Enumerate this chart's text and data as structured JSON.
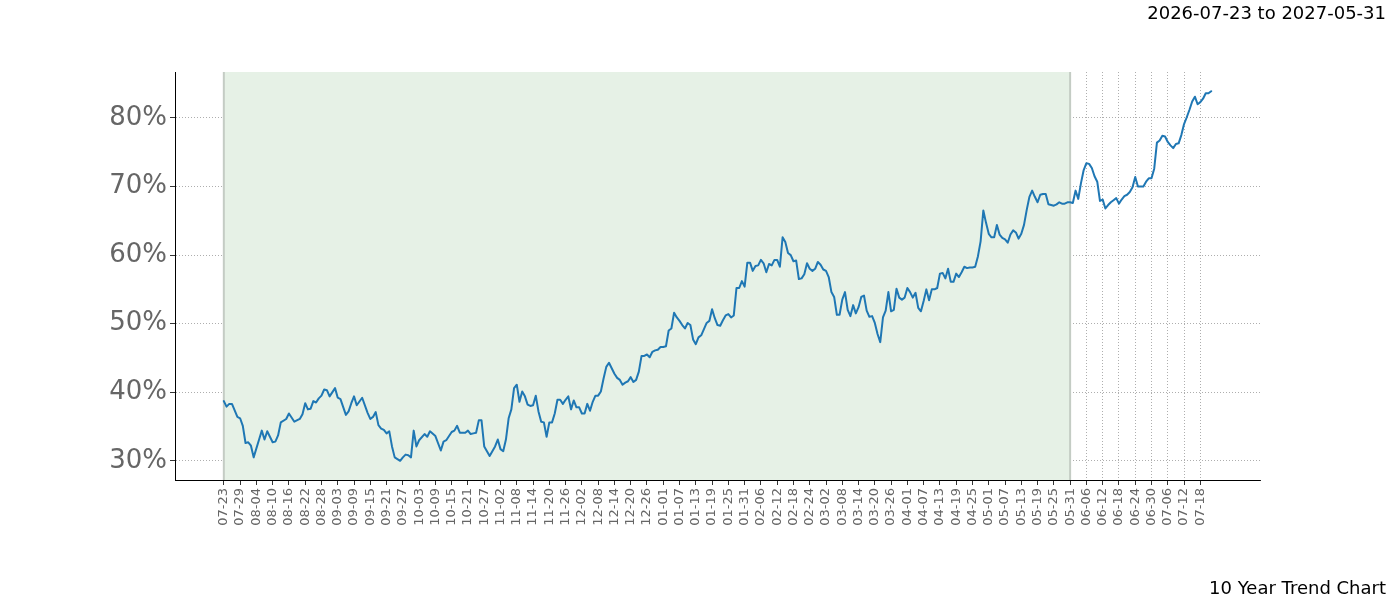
{
  "chart_data": {
    "type": "line",
    "title": "2026-07-23 to 2027-05-31",
    "annotations": [
      "10 Year Trend Chart"
    ],
    "color": "#1f77b4",
    "grid": true,
    "marker": "none",
    "line_style": "solid",
    "xlim": [
      "2026-07-05",
      "2027-08-09"
    ],
    "ylim": [
      27.2,
      86.7
    ],
    "yticks": [
      {
        "value": 30,
        "label": "30%"
      },
      {
        "value": 40,
        "label": "40%"
      },
      {
        "value": 50,
        "label": "50%"
      },
      {
        "value": 60,
        "label": "60%"
      },
      {
        "value": 70,
        "label": "70%"
      },
      {
        "value": 80,
        "label": "80%"
      }
    ],
    "xticks": [
      {
        "value": "2026-07-23",
        "label": "07-23"
      },
      {
        "value": "2026-07-29",
        "label": "07-29"
      },
      {
        "value": "2026-08-04",
        "label": "08-04"
      },
      {
        "value": "2026-08-10",
        "label": "08-10"
      },
      {
        "value": "2026-08-16",
        "label": "08-16"
      },
      {
        "value": "2026-08-22",
        "label": "08-22"
      },
      {
        "value": "2026-08-28",
        "label": "08-28"
      },
      {
        "value": "2026-09-03",
        "label": "09-03"
      },
      {
        "value": "2026-09-09",
        "label": "09-09"
      },
      {
        "value": "2026-09-15",
        "label": "09-15"
      },
      {
        "value": "2026-09-21",
        "label": "09-21"
      },
      {
        "value": "2026-09-27",
        "label": "09-27"
      },
      {
        "value": "2026-10-03",
        "label": "10-03"
      },
      {
        "value": "2026-10-09",
        "label": "10-09"
      },
      {
        "value": "2026-10-15",
        "label": "10-15"
      },
      {
        "value": "2026-10-21",
        "label": "10-21"
      },
      {
        "value": "2026-10-27",
        "label": "10-27"
      },
      {
        "value": "2026-11-02",
        "label": "11-02"
      },
      {
        "value": "2026-11-08",
        "label": "11-08"
      },
      {
        "value": "2026-11-14",
        "label": "11-14"
      },
      {
        "value": "2026-11-20",
        "label": "11-20"
      },
      {
        "value": "2026-11-26",
        "label": "11-26"
      },
      {
        "value": "2026-12-02",
        "label": "12-02"
      },
      {
        "value": "2026-12-08",
        "label": "12-08"
      },
      {
        "value": "2026-12-14",
        "label": "12-14"
      },
      {
        "value": "2026-12-20",
        "label": "12-20"
      },
      {
        "value": "2026-12-26",
        "label": "12-26"
      },
      {
        "value": "2027-01-01",
        "label": "01-01"
      },
      {
        "value": "2027-01-07",
        "label": "01-07"
      },
      {
        "value": "2027-01-13",
        "label": "01-13"
      },
      {
        "value": "2027-01-19",
        "label": "01-19"
      },
      {
        "value": "2027-01-25",
        "label": "01-25"
      },
      {
        "value": "2027-01-31",
        "label": "01-31"
      },
      {
        "value": "2027-02-06",
        "label": "02-06"
      },
      {
        "value": "2027-02-12",
        "label": "02-12"
      },
      {
        "value": "2027-02-18",
        "label": "02-18"
      },
      {
        "value": "2027-02-24",
        "label": "02-24"
      },
      {
        "value": "2027-03-02",
        "label": "03-02"
      },
      {
        "value": "2027-03-08",
        "label": "03-08"
      },
      {
        "value": "2027-03-14",
        "label": "03-14"
      },
      {
        "value": "2027-03-20",
        "label": "03-20"
      },
      {
        "value": "2027-03-26",
        "label": "03-26"
      },
      {
        "value": "2027-04-01",
        "label": "04-01"
      },
      {
        "value": "2027-04-07",
        "label": "04-07"
      },
      {
        "value": "2027-04-13",
        "label": "04-13"
      },
      {
        "value": "2027-04-19",
        "label": "04-19"
      },
      {
        "value": "2027-04-25",
        "label": "04-25"
      },
      {
        "value": "2027-05-01",
        "label": "05-01"
      },
      {
        "value": "2027-05-07",
        "label": "05-07"
      },
      {
        "value": "2027-05-13",
        "label": "05-13"
      },
      {
        "value": "2027-05-19",
        "label": "05-19"
      },
      {
        "value": "2027-05-25",
        "label": "05-25"
      },
      {
        "value": "2027-05-31",
        "label": "05-31"
      },
      {
        "value": "2027-06-06",
        "label": "06-06"
      },
      {
        "value": "2027-06-12",
        "label": "06-12"
      },
      {
        "value": "2027-06-18",
        "label": "06-18"
      },
      {
        "value": "2027-06-24",
        "label": "06-24"
      },
      {
        "value": "2027-06-30",
        "label": "06-30"
      },
      {
        "value": "2027-07-06",
        "label": "07-06"
      },
      {
        "value": "2027-07-12",
        "label": "07-12"
      },
      {
        "value": "2027-07-18",
        "label": "07-18"
      }
    ],
    "bands": [
      {
        "axis": "x",
        "from": "2026-07-23",
        "to": "2027-05-31",
        "color": "#e6f1e6"
      }
    ],
    "x": [
      "2026-07-23",
      "2026-07-24",
      "2026-07-25",
      "2026-07-26",
      "2026-07-28",
      "2026-07-29",
      "2026-07-30",
      "2026-07-31",
      "2026-08-01",
      "2026-08-02",
      "2026-08-03",
      "2026-08-05",
      "2026-08-06",
      "2026-08-07",
      "2026-08-08",
      "2026-08-09",
      "2026-08-10",
      "2026-08-11",
      "2026-08-12",
      "2026-08-13",
      "2026-08-15",
      "2026-08-16",
      "2026-08-18",
      "2026-08-20",
      "2026-08-21",
      "2026-08-22",
      "2026-08-23",
      "2026-08-24",
      "2026-08-25",
      "2026-08-26",
      "2026-08-27",
      "2026-08-28",
      "2026-08-29",
      "2026-08-30",
      "2026-08-31",
      "2026-09-02",
      "2026-09-03",
      "2026-09-04",
      "2026-09-06",
      "2026-09-07",
      "2026-09-08",
      "2026-09-09",
      "2026-09-10",
      "2026-09-12",
      "2026-09-14",
      "2026-09-15",
      "2026-09-16",
      "2026-09-17",
      "2026-09-18",
      "2026-09-19",
      "2026-09-20",
      "2026-09-21",
      "2026-09-22",
      "2026-09-23",
      "2026-09-24",
      "2026-09-26",
      "2026-09-27",
      "2026-09-28",
      "2026-09-29",
      "2026-09-30",
      "2026-10-01",
      "2026-10-02",
      "2026-10-03",
      "2026-10-05",
      "2026-10-06",
      "2026-10-07",
      "2026-10-09",
      "2026-10-11",
      "2026-10-12",
      "2026-10-13",
      "2026-10-15",
      "2026-10-16",
      "2026-10-17",
      "2026-10-18",
      "2026-10-20",
      "2026-10-21",
      "2026-10-22",
      "2026-10-23",
      "2026-10-24",
      "2026-10-25",
      "2026-10-26",
      "2026-10-27",
      "2026-10-28",
      "2026-10-29",
      "2026-10-31",
      "2026-11-01",
      "2026-11-02",
      "2026-11-03",
      "2026-11-04",
      "2026-11-05",
      "2026-11-06",
      "2026-11-07",
      "2026-11-08",
      "2026-11-09",
      "2026-11-10",
      "2026-11-11",
      "2026-11-12",
      "2026-11-13",
      "2026-11-14",
      "2026-11-15",
      "2026-11-16",
      "2026-11-17",
      "2026-11-18",
      "2026-11-19",
      "2026-11-20",
      "2026-11-21",
      "2026-11-22",
      "2026-11-23",
      "2026-11-24",
      "2026-11-25",
      "2026-11-26",
      "2026-11-27",
      "2026-11-28",
      "2026-11-29",
      "2026-11-30",
      "2026-12-01",
      "2026-12-02",
      "2026-12-03",
      "2026-12-04",
      "2026-12-05",
      "2026-12-06",
      "2026-12-07",
      "2026-12-08",
      "2026-12-09",
      "2026-12-10",
      "2026-12-11",
      "2026-12-12",
      "2026-12-13",
      "2026-12-14",
      "2026-12-15",
      "2026-12-16",
      "2026-12-17",
      "2026-12-18",
      "2026-12-19",
      "2026-12-20",
      "2026-12-21",
      "2026-12-22",
      "2026-12-23",
      "2026-12-24",
      "2026-12-25",
      "2026-12-26",
      "2026-12-27",
      "2026-12-28",
      "2026-12-29",
      "2026-12-30",
      "2026-12-31",
      "2027-01-01",
      "2027-01-02",
      "2027-01-03",
      "2027-01-04",
      "2027-01-05",
      "2027-01-06",
      "2027-01-07",
      "2027-01-08",
      "2027-01-09",
      "2027-01-10",
      "2027-01-11",
      "2027-01-12",
      "2027-01-13",
      "2027-01-14",
      "2027-01-15",
      "2027-01-16",
      "2027-01-17",
      "2027-01-18",
      "2027-01-19",
      "2027-01-20",
      "2027-01-21",
      "2027-01-22",
      "2027-01-23",
      "2027-01-24",
      "2027-01-25",
      "2027-01-26",
      "2027-01-27",
      "2027-01-28",
      "2027-01-29",
      "2027-01-30",
      "2027-01-31",
      "2027-02-01",
      "2027-02-02",
      "2027-02-03",
      "2027-02-04",
      "2027-02-05",
      "2027-02-06",
      "2027-02-07",
      "2027-02-08",
      "2027-02-09",
      "2027-02-10",
      "2027-02-11",
      "2027-02-12",
      "2027-02-13",
      "2027-02-14",
      "2027-02-15",
      "2027-02-16",
      "2027-02-17",
      "2027-02-18",
      "2027-02-19",
      "2027-02-20",
      "2027-02-21",
      "2027-02-22",
      "2027-02-23",
      "2027-02-24",
      "2027-02-25",
      "2027-02-26",
      "2027-02-27",
      "2027-02-28",
      "2027-03-01",
      "2027-03-02",
      "2027-03-03",
      "2027-03-04",
      "2027-03-05",
      "2027-03-06",
      "2027-03-07",
      "2027-03-08",
      "2027-03-09",
      "2027-03-10",
      "2027-03-11",
      "2027-03-12",
      "2027-03-13",
      "2027-03-14",
      "2027-03-15",
      "2027-03-16",
      "2027-03-17",
      "2027-03-18",
      "2027-03-19",
      "2027-03-20",
      "2027-03-21",
      "2027-03-22",
      "2027-03-23",
      "2027-03-24",
      "2027-03-25",
      "2027-03-26",
      "2027-03-27",
      "2027-03-28",
      "2027-03-29",
      "2027-03-30",
      "2027-03-31",
      "2027-04-01",
      "2027-04-02",
      "2027-04-03",
      "2027-04-04",
      "2027-04-05",
      "2027-04-06",
      "2027-04-07",
      "2027-04-08",
      "2027-04-09",
      "2027-04-10",
      "2027-04-11",
      "2027-04-12",
      "2027-04-13",
      "2027-04-14",
      "2027-04-15",
      "2027-04-16",
      "2027-04-17",
      "2027-04-18",
      "2027-04-19",
      "2027-04-20",
      "2027-04-21",
      "2027-04-22",
      "2027-04-23",
      "2027-04-24",
      "2027-04-25",
      "2027-04-26",
      "2027-04-27",
      "2027-04-28",
      "2027-04-29",
      "2027-04-30",
      "2027-05-01",
      "2027-05-02",
      "2027-05-03",
      "2027-05-04",
      "2027-05-05",
      "2027-05-06",
      "2027-05-07",
      "2027-05-08",
      "2027-05-09",
      "2027-05-10",
      "2027-05-11",
      "2027-05-12",
      "2027-05-13",
      "2027-05-14",
      "2027-05-15",
      "2027-05-16",
      "2027-05-17",
      "2027-05-18",
      "2027-05-19",
      "2027-05-20",
      "2027-05-21",
      "2027-05-22",
      "2027-05-23",
      "2027-05-24",
      "2027-05-25",
      "2027-05-26",
      "2027-05-27",
      "2027-05-28",
      "2027-05-29",
      "2027-05-30",
      "2027-05-31",
      "2027-06-01",
      "2027-06-02",
      "2027-06-03",
      "2027-06-04",
      "2027-06-05",
      "2027-06-06",
      "2027-06-07",
      "2027-06-08",
      "2027-06-09",
      "2027-06-10",
      "2027-06-11",
      "2027-06-12",
      "2027-06-13",
      "2027-06-14",
      "2027-06-15",
      "2027-06-16",
      "2027-06-17",
      "2027-06-18",
      "2027-06-19",
      "2027-06-20",
      "2027-06-21",
      "2027-06-22",
      "2027-06-23",
      "2027-06-24",
      "2027-06-25",
      "2027-06-26",
      "2027-06-27",
      "2027-06-28",
      "2027-06-29",
      "2027-06-30",
      "2027-07-01",
      "2027-07-02",
      "2027-07-03",
      "2027-07-04",
      "2027-07-05",
      "2027-07-06",
      "2027-07-07",
      "2027-07-08",
      "2027-07-09",
      "2027-07-10",
      "2027-07-11",
      "2027-07-12",
      "2027-07-13",
      "2027-07-14",
      "2027-07-15",
      "2027-07-16",
      "2027-07-17",
      "2027-07-18",
      "2027-07-19",
      "2027-07-20",
      "2027-07-21",
      "2027-07-22"
    ],
    "values": [
      38.7,
      37.9,
      38.3,
      38.3,
      36.4,
      36.2,
      35.1,
      32.6,
      32.7,
      32.2,
      30.5,
      33.1,
      34.4,
      33.1,
      34.3,
      33.5,
      32.7,
      32.8,
      33.7,
      35.6,
      36.1,
      36.9,
      35.7,
      36.1,
      36.8,
      38.4,
      37.5,
      37.6,
      38.7,
      38.5,
      39.1,
      39.5,
      40.4,
      40.3,
      39.4,
      40.6,
      39.2,
      39.0,
      36.7,
      37.2,
      38.4,
      39.4,
      38.1,
      39.2,
      37.0,
      36.1,
      36.4,
      37.1,
      35.2,
      34.7,
      34.5,
      34.0,
      34.3,
      32.1,
      30.5,
      30.0,
      30.5,
      30.9,
      30.8,
      30.5,
      34.4,
      32.1,
      33.0,
      33.9,
      33.5,
      34.3,
      33.6,
      31.5,
      32.8,
      33.0,
      34.2,
      34.4,
      35.1,
      34.1,
      34.1,
      34.4,
      33.9,
      34.0,
      34.1,
      35.9,
      35.9,
      32.1,
      31.4,
      30.7,
      32.1,
      33.1,
      31.7,
      31.4,
      33.1,
      36.2,
      37.5,
      40.6,
      41.1,
      38.6,
      40.1,
      39.4,
      38.2,
      38.0,
      38.1,
      39.5,
      37.2,
      35.7,
      35.6,
      33.5,
      35.6,
      35.6,
      36.9,
      38.9,
      38.9,
      38.3,
      38.9,
      39.4,
      37.5,
      38.8,
      37.8,
      37.8,
      36.9,
      36.9,
      38.3,
      37.3,
      38.6,
      39.5,
      39.5,
      40.1,
      42.0,
      43.7,
      44.3,
      43.5,
      42.7,
      42.1,
      41.8,
      41.1,
      41.4,
      41.6,
      42.2,
      41.5,
      41.8,
      43.0,
      45.3,
      45.3,
      45.5,
      45.1,
      45.9,
      46.1,
      46.2,
      46.6,
      46.6,
      46.7,
      49.0,
      49.3,
      51.6,
      50.9,
      50.4,
      49.8,
      49.3,
      50.1,
      49.8,
      47.7,
      47.0,
      48.0,
      48.3,
      49.2,
      50.1,
      50.4,
      52.1,
      50.8,
      49.8,
      49.7,
      50.5,
      51.2,
      51.4,
      50.9,
      51.2,
      55.2,
      55.2,
      56.2,
      55.4,
      58.9,
      58.9,
      57.7,
      58.4,
      58.5,
      59.3,
      58.8,
      57.5,
      58.7,
      58.5,
      59.3,
      59.3,
      58.3,
      62.6,
      61.9,
      60.3,
      60.0,
      59.1,
      59.2,
      56.5,
      56.6,
      57.2,
      58.8,
      58.0,
      57.7,
      58.0,
      59.0,
      58.6,
      57.9,
      57.7,
      56.8,
      54.6,
      53.9,
      51.3,
      51.3,
      53.5,
      54.6,
      52.0,
      51.1,
      52.7,
      51.5,
      52.4,
      53.9,
      54.1,
      51.9,
      51.0,
      51.1,
      50.1,
      48.5,
      47.3,
      50.9,
      51.9,
      54.6,
      51.8,
      52.0,
      55.1,
      53.8,
      53.5,
      53.8,
      55.2,
      54.6,
      53.8,
      54.5,
      52.3,
      51.8,
      53.3,
      55.0,
      53.4,
      55.0,
      55.0,
      55.2,
      57.3,
      57.4,
      56.6,
      58.0,
      56.1,
      56.1,
      57.3,
      56.8,
      57.5,
      58.3,
      58.1,
      58.2,
      58.2,
      58.3,
      59.8,
      62.0,
      66.5,
      64.7,
      63.1,
      62.6,
      62.6,
      64.4,
      63.0,
      62.5,
      62.3,
      61.8,
      63.0,
      63.6,
      63.3,
      62.4,
      63.1,
      64.4,
      66.6,
      68.5,
      69.4,
      68.5,
      67.7,
      68.8,
      68.9,
      68.9,
      67.4,
      67.3,
      67.2,
      67.4,
      67.7,
      67.5,
      67.5,
      67.7,
      67.7,
      67.6,
      69.4,
      68.2,
      70.5,
      72.4,
      73.4,
      73.3,
      72.7,
      71.5,
      70.7,
      67.9,
      68.1,
      66.8,
      67.3,
      67.7,
      68.0,
      68.3,
      67.5,
      68.1,
      68.6,
      68.8,
      69.2,
      69.9,
      71.4,
      70.0,
      70.0,
      70.0,
      70.7,
      71.2,
      71.2,
      72.6,
      76.4,
      76.7,
      77.4,
      77.3,
      76.5,
      76.0,
      75.6,
      76.2,
      76.3,
      77.5,
      79.1,
      80.1,
      81.2,
      82.4,
      83.1,
      82.0,
      82.3,
      82.8,
      83.6,
      83.6,
      83.9
    ]
  }
}
